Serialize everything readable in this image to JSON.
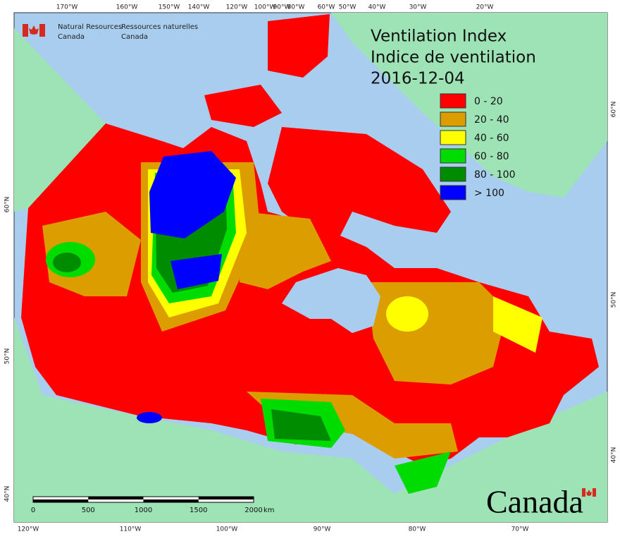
{
  "agency": {
    "en": [
      "Natural Resources",
      "Canada"
    ],
    "fr": [
      "Ressources naturelles",
      "Canada"
    ]
  },
  "title": [
    "Ventilation Index",
    "Indice de ventilation"
  ],
  "date": "2016-12-04",
  "legend": [
    {
      "label": "0 - 20",
      "color": "#ff0000"
    },
    {
      "label": "20 - 40",
      "color": "#dc9d00"
    },
    {
      "label": "40 - 60",
      "color": "#ffff00"
    },
    {
      "label": "60 - 80",
      "color": "#00dc00"
    },
    {
      "label": "80 - 100",
      "color": "#008c00"
    },
    {
      "label": "> 100",
      "color": "#0000ff"
    }
  ],
  "scale_bar": {
    "ticks": [
      0,
      500,
      1000,
      1500,
      2000
    ],
    "unit": "km"
  },
  "graticule": {
    "top": [
      "170°W",
      "160°W",
      "150°W",
      "140°W",
      "120°W",
      "100°W",
      "90°W",
      "80°W",
      "60°W",
      "50°W",
      "40°W",
      "30°W",
      "20°W"
    ],
    "bottom": [
      "120°W",
      "110°W",
      "100°W",
      "90°W",
      "80°W",
      "70°W"
    ],
    "left": [
      "60°N",
      "50°N",
      "40°N"
    ],
    "right": [
      "60°N",
      "50°N",
      "40°N"
    ]
  },
  "wordmark": "Canada"
}
